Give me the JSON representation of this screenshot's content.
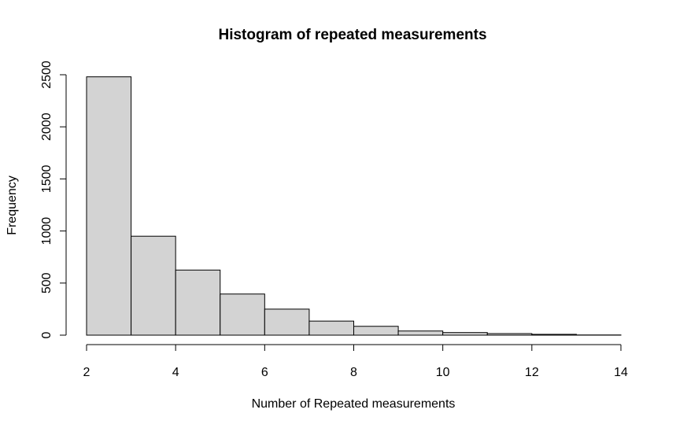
{
  "chart_data": {
    "type": "bar",
    "title": "Histogram of repeated measurements",
    "xlabel": "Number of Repeated measurements",
    "ylabel": "Frequency",
    "bins": [
      {
        "start": 2,
        "end": 3,
        "count": 2480
      },
      {
        "start": 3,
        "end": 4,
        "count": 950
      },
      {
        "start": 4,
        "end": 5,
        "count": 625
      },
      {
        "start": 5,
        "end": 6,
        "count": 395
      },
      {
        "start": 6,
        "end": 7,
        "count": 250
      },
      {
        "start": 7,
        "end": 8,
        "count": 135
      },
      {
        "start": 8,
        "end": 9,
        "count": 85
      },
      {
        "start": 9,
        "end": 10,
        "count": 40
      },
      {
        "start": 10,
        "end": 11,
        "count": 25
      },
      {
        "start": 11,
        "end": 12,
        "count": 15
      },
      {
        "start": 12,
        "end": 13,
        "count": 8
      },
      {
        "start": 13,
        "end": 14,
        "count": 2
      }
    ],
    "xlim": [
      2,
      14
    ],
    "ylim": [
      0,
      2500
    ],
    "xticks": [
      2,
      4,
      6,
      8,
      10,
      12,
      14
    ],
    "yticks": [
      0,
      500,
      1000,
      1500,
      2000,
      2500
    ],
    "grid": false,
    "bar_color": "#d3d3d3",
    "edge_color": "#000000"
  }
}
